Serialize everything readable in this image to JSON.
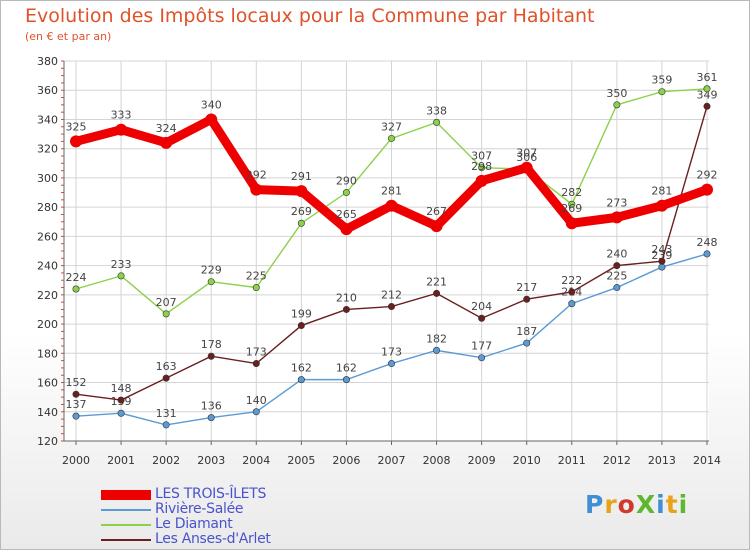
{
  "title": "Evolution des Impôts locaux pour la Commune par Habitant",
  "subtitle": "(en € et par an)",
  "logo": {
    "text": "ProXiti",
    "letters": [
      "P",
      "r",
      "o",
      "X",
      "i",
      "t",
      "i"
    ],
    "colors": [
      "#3f8fd4",
      "#e8a318",
      "#d03a2a",
      "#5cb82e",
      "#3f8fd4",
      "#e8a318",
      "#5cb82e"
    ]
  },
  "chart_data": {
    "type": "line",
    "x": [
      "2000",
      "2001",
      "2002",
      "2003",
      "2004",
      "2005",
      "2006",
      "2007",
      "2008",
      "2009",
      "2010",
      "2011",
      "2012",
      "2013",
      "2014"
    ],
    "ylim": [
      120,
      380
    ],
    "yticks": [
      "120",
      "140",
      "160",
      "180",
      "200",
      "220",
      "240",
      "260",
      "280",
      "300",
      "320",
      "340",
      "360",
      "380"
    ],
    "grid": true,
    "legend_position": "bottom-left",
    "series": [
      {
        "name": "LES TROIS-ÎLETS",
        "color": "#ee0000",
        "values": [
          325,
          333,
          324,
          340,
          292,
          291,
          265,
          281,
          267,
          298,
          307,
          269,
          273,
          281,
          292
        ],
        "labels": [
          "325",
          "333",
          "324",
          "340",
          "292",
          "291",
          "265",
          "281",
          "267",
          "298",
          "307",
          "269",
          "273",
          "281",
          "292"
        ]
      },
      {
        "name": "Rivière-Salée",
        "color": "#5b9bd5",
        "values": [
          137,
          139,
          131,
          136,
          140,
          162,
          162,
          173,
          182,
          177,
          187,
          214,
          225,
          239,
          248
        ],
        "labels": [
          "137",
          "139",
          "131",
          "136",
          "140",
          "162",
          "162",
          "173",
          "182",
          "177",
          "187",
          "214",
          "225",
          "239",
          "248"
        ]
      },
      {
        "name": "Le Diamant",
        "color": "#8cd14a",
        "values": [
          224,
          233,
          207,
          229,
          225,
          269,
          290,
          327,
          338,
          307,
          306,
          282,
          350,
          359,
          361
        ],
        "labels": [
          "224",
          "233",
          "207",
          "229",
          "225",
          "269",
          "290",
          "327",
          "338",
          "307",
          "306",
          "282",
          "350",
          "359",
          "361"
        ]
      },
      {
        "name": "Les Anses-d'Arlet",
        "color": "#6b1f1f",
        "values": [
          152,
          148,
          163,
          178,
          173,
          199,
          210,
          212,
          221,
          204,
          217,
          222,
          240,
          243,
          349
        ],
        "labels": [
          "152",
          "148",
          "163",
          "178",
          "173",
          "199",
          "210",
          "212",
          "221",
          "204",
          "217",
          "222",
          "240",
          "243",
          "349"
        ]
      }
    ]
  }
}
